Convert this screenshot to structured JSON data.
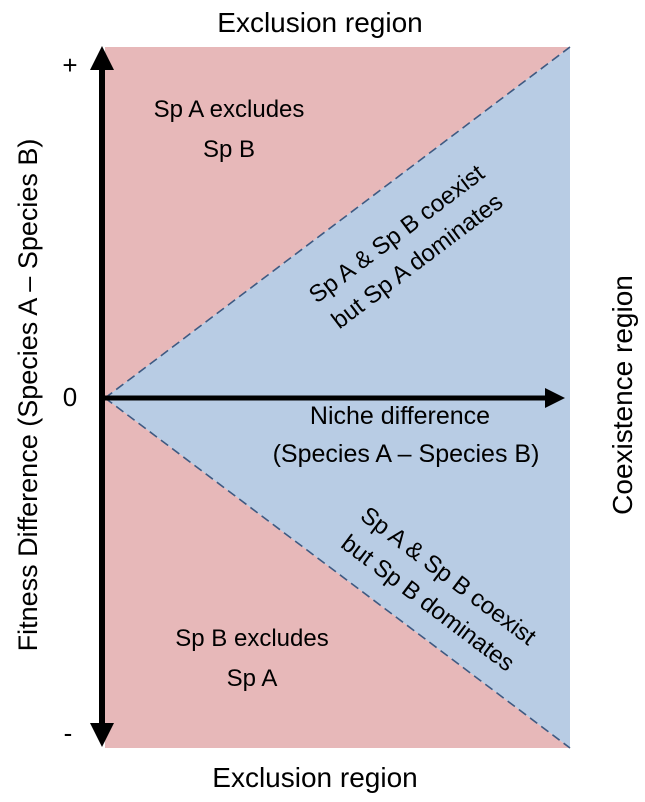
{
  "top_region_label": "Exclusion region",
  "bottom_region_label": "Exclusion region",
  "right_region_label": "Coexistence region",
  "y_axis": {
    "label": "Fitness Difference (Species A – Species B)",
    "tick_plus": "+",
    "tick_zero": "0",
    "tick_minus": "-"
  },
  "x_axis": {
    "label_line1": "Niche difference",
    "label_line2": "(Species A – Species B)"
  },
  "regions": {
    "a_excludes_line1": "Sp A excludes",
    "a_excludes_line2": "Sp B",
    "b_excludes_line1": "Sp B excludes",
    "b_excludes_line2": "Sp A",
    "coexist_a_line1": "Sp A & Sp B coexist",
    "coexist_a_line2": "but Sp A dominates",
    "coexist_b_line1": "Sp A & Sp B coexist",
    "coexist_b_line2": "but Sp B dominates"
  },
  "colors": {
    "exclusion": "#e7b8b9",
    "coexistence": "#b8cce4",
    "boundary": "#3e5a82",
    "axis": "#000000"
  }
}
